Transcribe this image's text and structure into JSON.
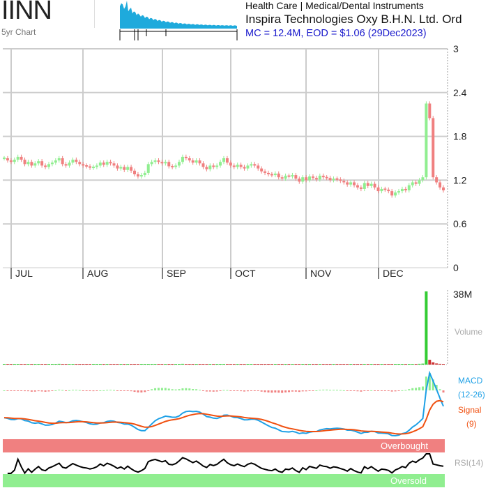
{
  "header": {
    "ticker": "IINN",
    "sub_label": "5yr Chart",
    "sector": "Health Care | Medical/Dental Instruments",
    "company": "Inspira Technologies Oxy B.H.N. Ltd. Ord",
    "market_info": "MC = 12.4M, EOD = $1.06 (29Dec2023)"
  },
  "colors": {
    "up": "#90ee90",
    "down": "#f08080",
    "macd_line": "#1ea0e6",
    "signal_line": "#f05010",
    "rsi_line": "#000000",
    "overbought_band": "#f08080",
    "oversold_band": "#90ee90",
    "grid": "#cccccc",
    "volume_up": "#33cc33",
    "volume_down": "#cc3333",
    "sparkline": "#1eaadc",
    "label_gray": "#aaaaaa",
    "macd_label": "#1ea0e6",
    "signal_label": "#f05010"
  },
  "chart_data": {
    "type": "line",
    "title": "",
    "price_axis": {
      "ylim": [
        0,
        3
      ],
      "ticks": [
        0,
        0.6,
        1.2,
        1.8,
        2.4,
        3
      ]
    },
    "x_labels": [
      "JUL",
      "AUG",
      "SEP",
      "OCT",
      "NOV",
      "DEC"
    ],
    "months": [
      {
        "label": "JUL",
        "first_bar": 0
      },
      {
        "label": "AUG",
        "first_bar": 21
      },
      {
        "label": "SEP",
        "first_bar": 44
      },
      {
        "label": "OCT",
        "first_bar": 64
      },
      {
        "label": "NOV",
        "first_bar": 86
      },
      {
        "label": "DEC",
        "first_bar": 107
      }
    ],
    "close": [
      1.5,
      1.47,
      1.45,
      1.48,
      1.52,
      1.48,
      1.42,
      1.45,
      1.4,
      1.43,
      1.46,
      1.4,
      1.38,
      1.42,
      1.44,
      1.47,
      1.5,
      1.42,
      1.4,
      1.44,
      1.48,
      1.45,
      1.42,
      1.4,
      1.39,
      1.37,
      1.38,
      1.4,
      1.44,
      1.41,
      1.45,
      1.43,
      1.4,
      1.36,
      1.38,
      1.34,
      1.38,
      1.33,
      1.28,
      1.25,
      1.27,
      1.3,
      1.42,
      1.45,
      1.47,
      1.45,
      1.43,
      1.45,
      1.39,
      1.38,
      1.4,
      1.45,
      1.52,
      1.5,
      1.47,
      1.44,
      1.47,
      1.43,
      1.38,
      1.35,
      1.4,
      1.38,
      1.4,
      1.45,
      1.5,
      1.44,
      1.4,
      1.38,
      1.41,
      1.38,
      1.36,
      1.4,
      1.42,
      1.4,
      1.36,
      1.32,
      1.3,
      1.28,
      1.27,
      1.29,
      1.24,
      1.22,
      1.26,
      1.25,
      1.27,
      1.22,
      1.18,
      1.24,
      1.2,
      1.25,
      1.23,
      1.21,
      1.26,
      1.24,
      1.23,
      1.2,
      1.22,
      1.21,
      1.19,
      1.17,
      1.14,
      1.17,
      1.13,
      1.1,
      1.08,
      1.16,
      1.12,
      1.15,
      1.1,
      1.05,
      1.08,
      1.07,
      1.05,
      0.99,
      1.03,
      1.05,
      1.08,
      1.06,
      1.13,
      1.17,
      1.15,
      1.2,
      1.24,
      2.25,
      2.05,
      1.24,
      1.17,
      1.1,
      1.06
    ],
    "volume_millions": [
      0.3,
      0.2,
      0.2,
      0.25,
      0.3,
      0.2,
      0.2,
      0.25,
      0.2,
      0.2,
      0.3,
      0.2,
      0.2,
      0.2,
      0.2,
      0.25,
      0.4,
      0.3,
      0.2,
      0.2,
      0.25,
      0.2,
      0.2,
      0.2,
      0.2,
      0.2,
      0.2,
      0.2,
      0.3,
      0.2,
      0.2,
      0.2,
      0.2,
      0.2,
      0.2,
      0.2,
      0.2,
      0.2,
      0.2,
      0.25,
      0.2,
      0.3,
      0.3,
      0.3,
      0.3,
      0.2,
      0.2,
      0.2,
      0.2,
      0.2,
      0.2,
      0.3,
      0.4,
      0.3,
      0.2,
      0.2,
      0.2,
      0.2,
      0.2,
      0.2,
      0.2,
      0.2,
      0.2,
      0.2,
      0.25,
      0.3,
      0.2,
      0.2,
      0.2,
      0.2,
      0.2,
      0.2,
      0.2,
      0.2,
      0.2,
      0.2,
      0.2,
      0.2,
      0.2,
      0.2,
      0.2,
      0.2,
      0.2,
      0.2,
      0.2,
      0.2,
      0.2,
      0.2,
      0.2,
      0.2,
      0.2,
      0.2,
      0.2,
      0.2,
      0.2,
      0.2,
      0.2,
      0.2,
      0.2,
      0.2,
      0.2,
      0.2,
      0.2,
      0.2,
      0.2,
      0.2,
      0.2,
      0.2,
      0.2,
      0.2,
      0.2,
      0.2,
      0.2,
      0.3,
      0.2,
      0.2,
      0.2,
      0.2,
      0.2,
      0.3,
      0.3,
      0.4,
      0.5,
      38,
      2.5,
      1.2,
      0.6,
      0.4,
      0.3
    ],
    "volume_axis": {
      "ylim": [
        0,
        38
      ],
      "tick_label": "38M"
    },
    "panel_labels": {
      "volume": "Volume",
      "macd": "MACD",
      "macd_params": "(12-26)",
      "signal": "Signal",
      "signal_params": "(9)",
      "overbought": "Overbought",
      "oversold": "Oversold",
      "rsi": "RSI(14)"
    }
  }
}
